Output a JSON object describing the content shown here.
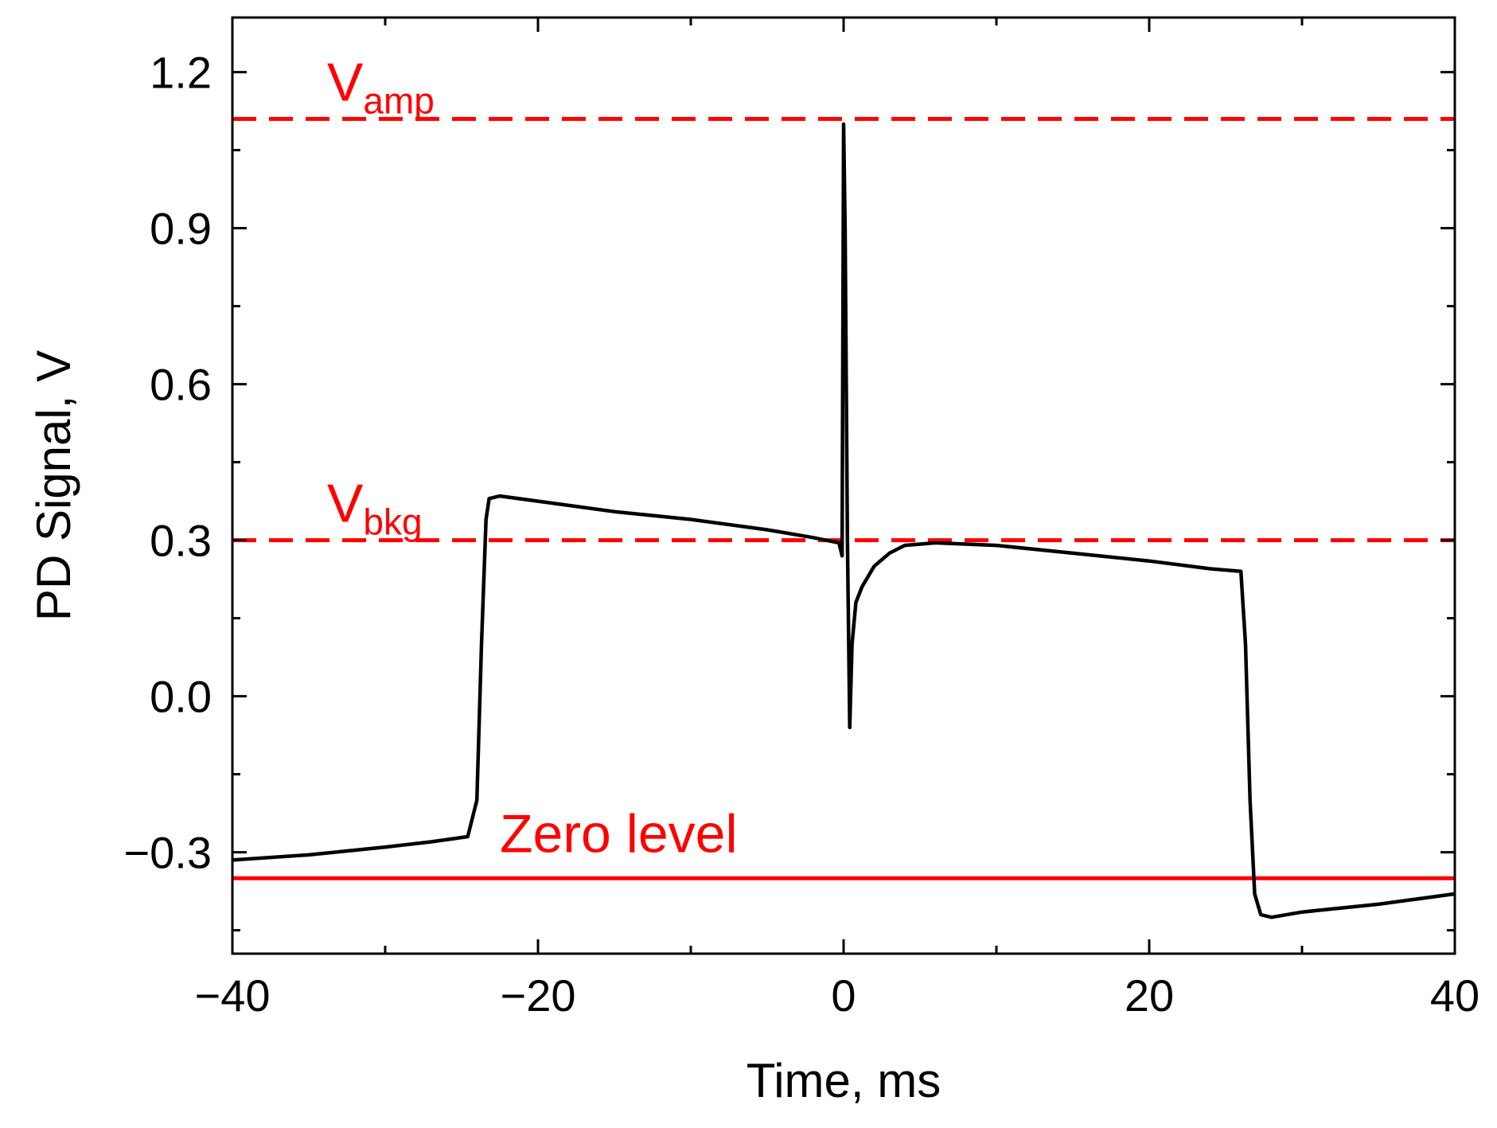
{
  "chart_data": {
    "type": "line",
    "xlabel": "Time, ms",
    "ylabel": "PD Signal, V",
    "xlim": [
      -40,
      40
    ],
    "ylim": [
      -0.495,
      1.305
    ],
    "x_ticks": [
      -40,
      -20,
      0,
      20,
      40
    ],
    "x_tick_labels": [
      "−40",
      "−20",
      "0",
      "20",
      "40"
    ],
    "x_minor_ticks": [
      -30,
      -10,
      10,
      30
    ],
    "y_ticks": [
      -0.3,
      0.0,
      0.3,
      0.6,
      0.9,
      1.2
    ],
    "y_tick_labels": [
      "−0.3",
      "0.0",
      "0.3",
      "0.6",
      "0.9",
      "1.2"
    ],
    "y_minor_ticks": [
      -0.45,
      -0.15,
      0.15,
      0.45,
      0.75,
      1.05
    ],
    "grid": false,
    "reference_lines": [
      {
        "value": 1.11,
        "style": "dashed",
        "color": "#ff0000",
        "label_main": "V",
        "label_sub": "amp",
        "label_x": -33.8,
        "label_y": 1.145
      },
      {
        "value": 0.3,
        "style": "dashed",
        "color": "#ff0000",
        "label_main": "V",
        "label_sub": "bkg",
        "label_x": -33.8,
        "label_y": 0.335
      },
      {
        "value": -0.35,
        "style": "solid",
        "color": "#ff0000",
        "label_main": "Zero level",
        "label_sub": "",
        "label_x": -22.5,
        "label_y": -0.3
      }
    ],
    "series": [
      {
        "color": "#000000",
        "x": [
          -40,
          -35,
          -30,
          -27,
          -24.6,
          -24.0,
          -23.7,
          -23.4,
          -23.2,
          -22.5,
          -20,
          -15,
          -10,
          -5,
          -2,
          -0.3,
          -0.1,
          0.0,
          0.1,
          0.25,
          0.4,
          0.55,
          0.8,
          1.2,
          2,
          3,
          4,
          6,
          10,
          15,
          20,
          24,
          26.0,
          26.3,
          26.6,
          26.9,
          27.3,
          28,
          30,
          35,
          40
        ],
        "y": [
          -0.315,
          -0.305,
          -0.29,
          -0.28,
          -0.27,
          -0.2,
          0.1,
          0.34,
          0.38,
          0.385,
          0.375,
          0.355,
          0.34,
          0.32,
          0.305,
          0.295,
          0.27,
          1.1,
          0.9,
          0.3,
          -0.06,
          0.1,
          0.18,
          0.21,
          0.25,
          0.275,
          0.29,
          0.295,
          0.29,
          0.275,
          0.26,
          0.245,
          0.24,
          0.1,
          -0.2,
          -0.38,
          -0.42,
          -0.425,
          -0.415,
          -0.4,
          -0.38
        ]
      }
    ]
  },
  "colors": {
    "reference": "#ff0000",
    "signal": "#000000",
    "axis": "#000000"
  }
}
